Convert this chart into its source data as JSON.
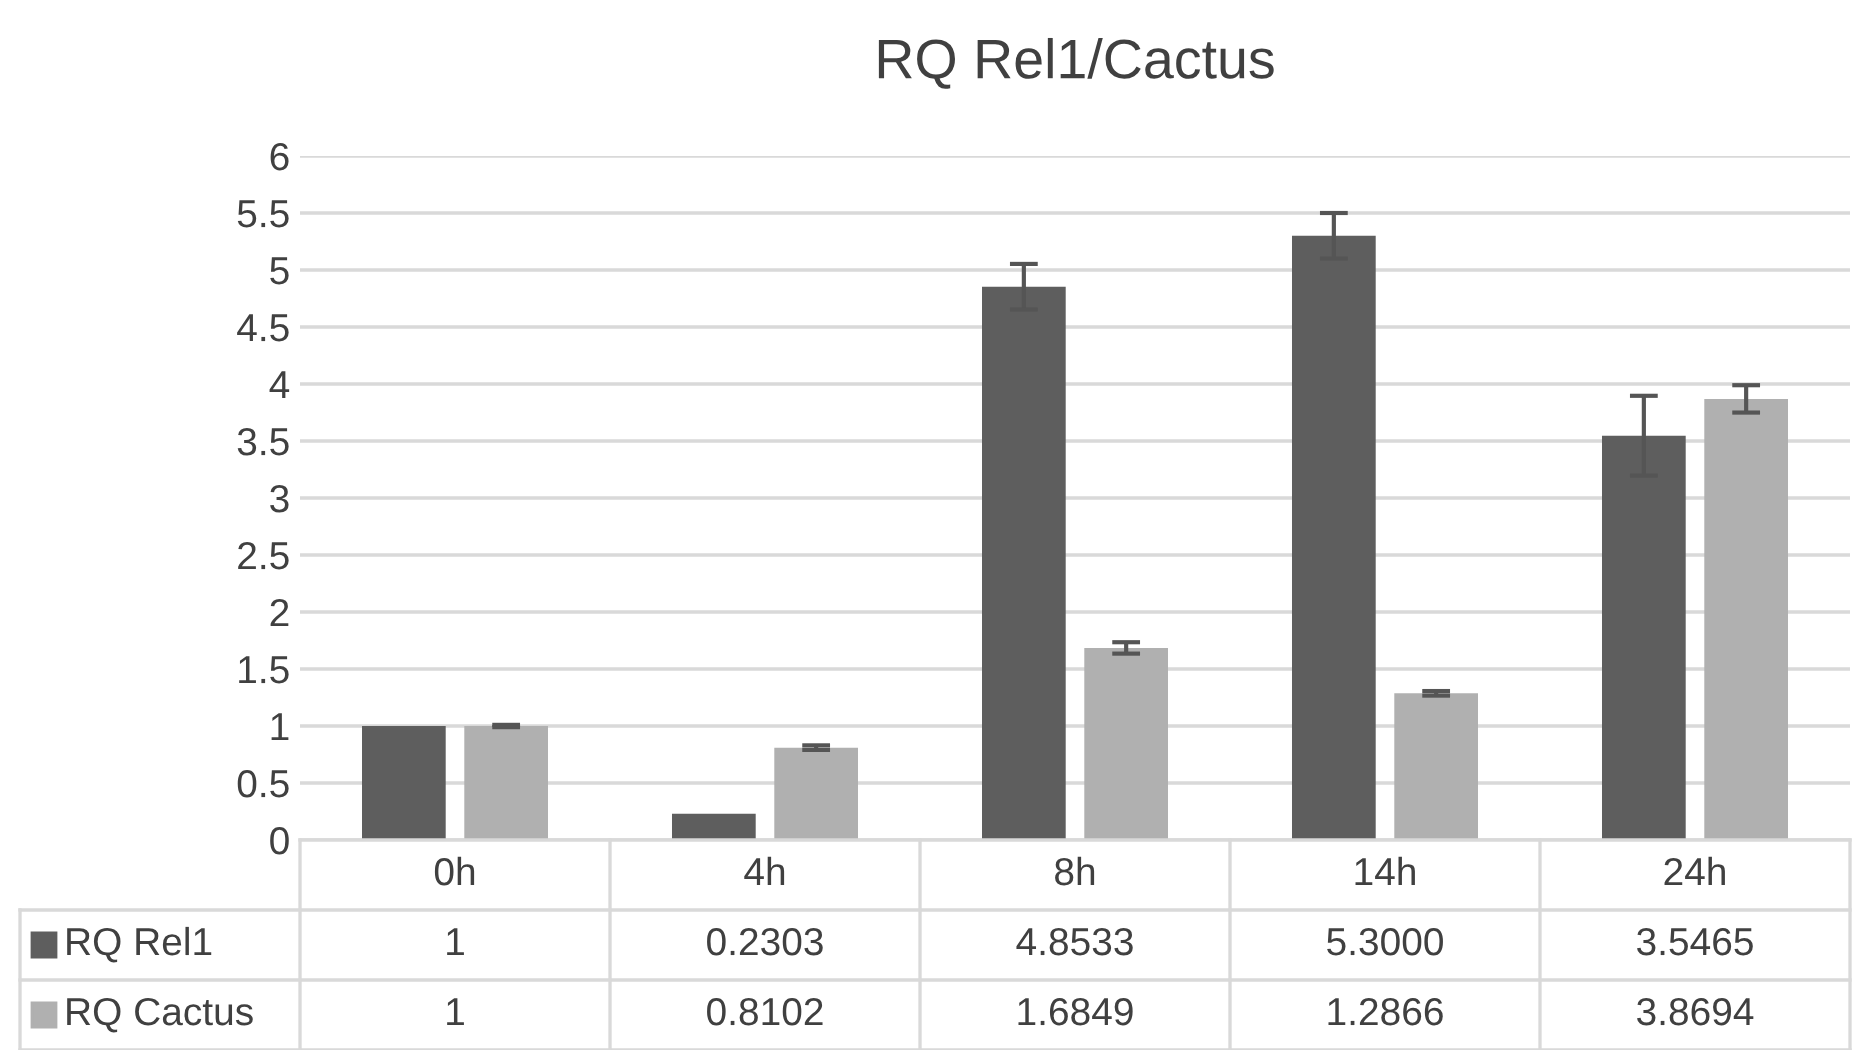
{
  "chart_data": {
    "type": "bar",
    "title": "RQ Rel1/Cactus",
    "categories": [
      "0h",
      "4h",
      "8h",
      "14h",
      "24h"
    ],
    "series": [
      {
        "name": "RQ Rel1",
        "color": "#5e5e5e",
        "values": [
          1,
          0.2303,
          4.8533,
          5.3,
          3.5465
        ],
        "errors": [
          null,
          null,
          0.2,
          0.2,
          0.35
        ],
        "value_labels": [
          "1",
          "0.2303",
          "4.8533",
          "5.3000",
          "3.5465"
        ]
      },
      {
        "name": "RQ Cactus",
        "color": "#b0b0b0",
        "values": [
          1,
          0.8102,
          1.6849,
          1.2866,
          3.8694
        ],
        "errors": [
          0.01,
          0.02,
          0.05,
          0.02,
          0.12
        ],
        "value_labels": [
          "1",
          "0.8102",
          "1.6849",
          "1.2866",
          "3.8694"
        ]
      }
    ],
    "ylim": [
      0,
      6
    ],
    "yticks": [
      0,
      0.5,
      1,
      1.5,
      2,
      2.5,
      3,
      3.5,
      4,
      4.5,
      5,
      5.5,
      6
    ],
    "grid": "y",
    "legend": "bottom"
  }
}
